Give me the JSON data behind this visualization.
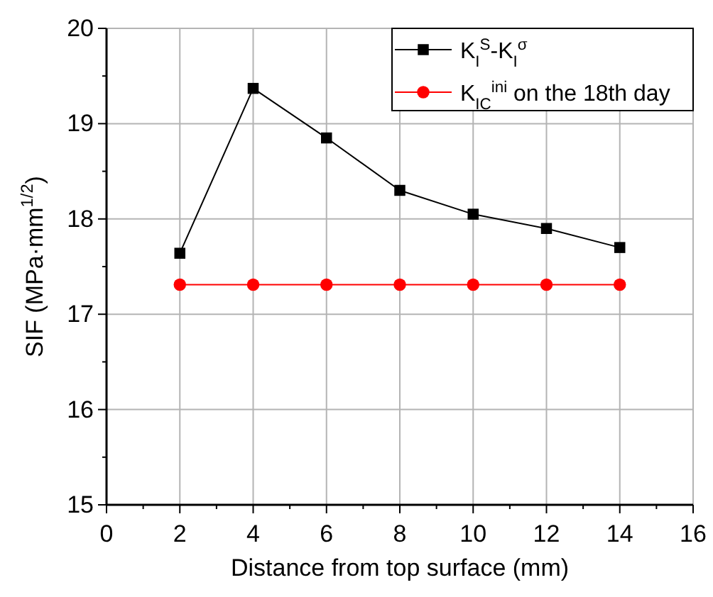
{
  "chart_data": {
    "type": "line",
    "xlabel": "Distance from top surface (mm)",
    "ylabel": "SIF (MPa·mm$^{1/2}$)",
    "x": [
      2,
      4,
      6,
      8,
      10,
      12,
      14
    ],
    "series": [
      {
        "name": "K$_{I}$$^{S}$-K$_{I}$$^{σ}$",
        "color": "#000000",
        "marker": "square",
        "values": [
          17.64,
          19.37,
          18.85,
          18.3,
          18.05,
          17.9,
          17.7
        ]
      },
      {
        "name": "K$_{IC}$$^{ini}$ on the 18th day",
        "color": "#ff0000",
        "marker": "circle",
        "values": [
          17.31,
          17.31,
          17.31,
          17.31,
          17.31,
          17.31,
          17.31
        ]
      }
    ],
    "xlim": [
      0,
      16
    ],
    "xticks": [
      0,
      {
        "value": 1,
        "label": null
      },
      2,
      {
        "value": 3,
        "label": null
      },
      4,
      {
        "value": 5,
        "label": null
      },
      6,
      {
        "value": 7,
        "label": null
      },
      8,
      {
        "value": 9,
        "label": null
      },
      10,
      {
        "value": 11,
        "label": null
      },
      12,
      {
        "value": 13,
        "label": null
      },
      14,
      {
        "value": 15,
        "label": null
      },
      16
    ],
    "ylim": [
      15,
      20
    ],
    "yticks": [
      15,
      {
        "value": 15.5,
        "label": null
      },
      16,
      {
        "value": 16.5,
        "label": null
      },
      17,
      {
        "value": 17.5,
        "label": null
      },
      18,
      {
        "value": 18.5,
        "label": null
      },
      19,
      {
        "value": 19.5,
        "label": null
      },
      20
    ],
    "grid": true,
    "legend": "top right",
    "line_style": "solid"
  }
}
